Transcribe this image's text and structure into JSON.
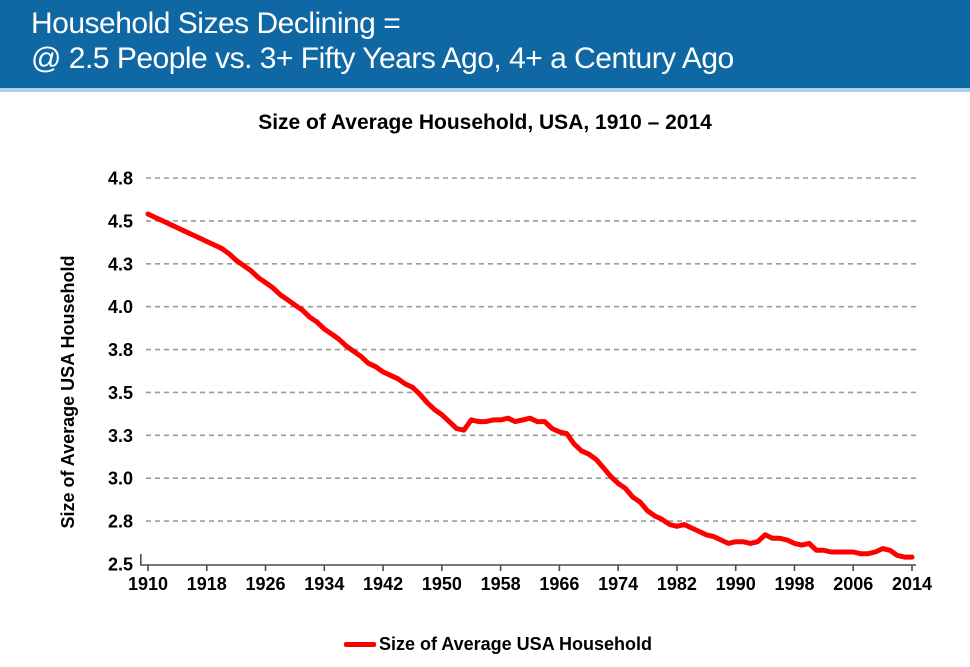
{
  "banner": {
    "line1": "Household Sizes Declining =",
    "line2": "@ 2.5 People vs. 3+ Fifty Years Ago, 4+ a Century Ago",
    "bg_color": "#0f68a3",
    "strip_color": "#aecfe5",
    "text_color": "#ffffff"
  },
  "chart_data": {
    "type": "line",
    "title": "Size of Average Household, USA, 1910 – 2014",
    "xlabel": "",
    "ylabel": "Size of Average USA Household",
    "xlim": [
      1910,
      2014
    ],
    "ylim": [
      2.5,
      4.75
    ],
    "grid": "horizontal-dashed",
    "legend_position": "bottom",
    "x_ticks": [
      1910,
      1918,
      1926,
      1934,
      1942,
      1950,
      1958,
      1966,
      1974,
      1982,
      1990,
      1998,
      2006,
      2014
    ],
    "y_ticks": [
      {
        "label": "2.5",
        "value": 2.5
      },
      {
        "label": "2.8",
        "value": 2.75
      },
      {
        "label": "3.0",
        "value": 3.0
      },
      {
        "label": "3.3",
        "value": 3.25
      },
      {
        "label": "3.5",
        "value": 3.5
      },
      {
        "label": "3.8",
        "value": 3.75
      },
      {
        "label": "4.0",
        "value": 4.0
      },
      {
        "label": "4.3",
        "value": 4.25
      },
      {
        "label": "4.5",
        "value": 4.5
      },
      {
        "label": "4.8",
        "value": 4.75
      }
    ],
    "colors": {
      "line": "#fe0000",
      "gridline": "#9b9b9b",
      "axis": "#4d4d4d",
      "tick_label": "#000000"
    },
    "legend": {
      "entries": [
        {
          "label": "Size of Average USA Household",
          "color": "#fe0000"
        }
      ]
    },
    "series": [
      {
        "name": "Size of Average USA Household",
        "color": "#fe0000",
        "x": [
          1910,
          1911,
          1912,
          1913,
          1914,
          1915,
          1916,
          1917,
          1918,
          1919,
          1920,
          1921,
          1922,
          1923,
          1924,
          1925,
          1926,
          1927,
          1928,
          1929,
          1930,
          1931,
          1932,
          1933,
          1934,
          1935,
          1936,
          1937,
          1938,
          1939,
          1940,
          1941,
          1942,
          1943,
          1944,
          1945,
          1946,
          1947,
          1948,
          1949,
          1950,
          1951,
          1952,
          1953,
          1954,
          1955,
          1956,
          1957,
          1958,
          1959,
          1960,
          1961,
          1962,
          1963,
          1964,
          1965,
          1966,
          1967,
          1968,
          1969,
          1970,
          1971,
          1972,
          1973,
          1974,
          1975,
          1976,
          1977,
          1978,
          1979,
          1980,
          1981,
          1982,
          1983,
          1984,
          1985,
          1986,
          1987,
          1988,
          1989,
          1990,
          1991,
          1992,
          1993,
          1994,
          1995,
          1996,
          1997,
          1998,
          1999,
          2000,
          2001,
          2002,
          2003,
          2004,
          2005,
          2006,
          2007,
          2008,
          2009,
          2010,
          2011,
          2012,
          2013,
          2014
        ],
        "values": [
          4.54,
          4.52,
          4.5,
          4.48,
          4.46,
          4.44,
          4.42,
          4.4,
          4.38,
          4.36,
          4.34,
          4.31,
          4.27,
          4.24,
          4.21,
          4.17,
          4.14,
          4.11,
          4.07,
          4.04,
          4.01,
          3.98,
          3.94,
          3.91,
          3.87,
          3.84,
          3.81,
          3.77,
          3.74,
          3.71,
          3.67,
          3.65,
          3.62,
          3.6,
          3.58,
          3.55,
          3.53,
          3.49,
          3.44,
          3.4,
          3.37,
          3.33,
          3.29,
          3.28,
          3.34,
          3.33,
          3.33,
          3.34,
          3.34,
          3.35,
          3.33,
          3.34,
          3.35,
          3.33,
          3.33,
          3.29,
          3.27,
          3.26,
          3.2,
          3.16,
          3.14,
          3.11,
          3.06,
          3.01,
          2.97,
          2.94,
          2.89,
          2.86,
          2.81,
          2.78,
          2.76,
          2.73,
          2.72,
          2.73,
          2.71,
          2.69,
          2.67,
          2.66,
          2.64,
          2.62,
          2.63,
          2.63,
          2.62,
          2.63,
          2.67,
          2.65,
          2.65,
          2.64,
          2.62,
          2.61,
          2.62,
          2.58,
          2.58,
          2.57,
          2.57,
          2.57,
          2.57,
          2.56,
          2.56,
          2.57,
          2.59,
          2.58,
          2.55,
          2.54,
          2.54
        ]
      }
    ]
  }
}
